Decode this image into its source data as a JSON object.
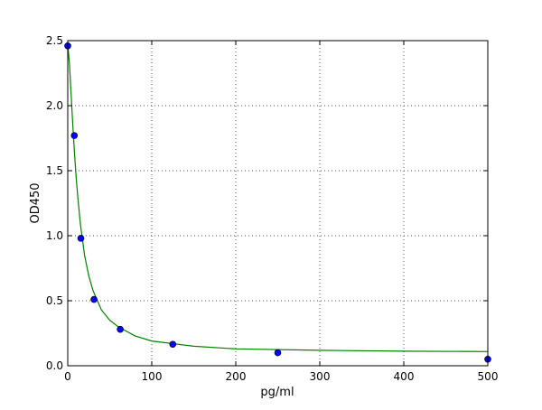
{
  "chart_data": {
    "type": "scatter",
    "title": "",
    "xlabel": "pg/ml",
    "ylabel": "OD450",
    "xlim": [
      0,
      500
    ],
    "ylim": [
      0,
      2.5
    ],
    "xticks": [
      "0",
      "100",
      "200",
      "300",
      "400",
      "500"
    ],
    "yticks": [
      "0.0",
      "0.5",
      "1.0",
      "1.5",
      "2.0",
      "2.5"
    ],
    "grid": true,
    "points": {
      "x": [
        0,
        7.8,
        15.6,
        31.25,
        62.5,
        125,
        250,
        500
      ],
      "y": [
        2.46,
        1.77,
        0.98,
        0.51,
        0.28,
        0.165,
        0.1,
        0.05
      ],
      "color": "#0000ff"
    },
    "fit_curve": {
      "x": [
        0,
        2,
        4,
        6,
        8,
        10,
        12,
        15,
        20,
        25,
        30,
        40,
        50,
        60,
        80,
        100,
        150,
        200,
        300,
        400,
        500
      ],
      "y": [
        2.47,
        2.32,
        2.09,
        1.85,
        1.64,
        1.45,
        1.29,
        1.09,
        0.85,
        0.69,
        0.58,
        0.43,
        0.35,
        0.3,
        0.23,
        0.19,
        0.15,
        0.13,
        0.119,
        0.112,
        0.109
      ],
      "color": "#008000"
    }
  }
}
